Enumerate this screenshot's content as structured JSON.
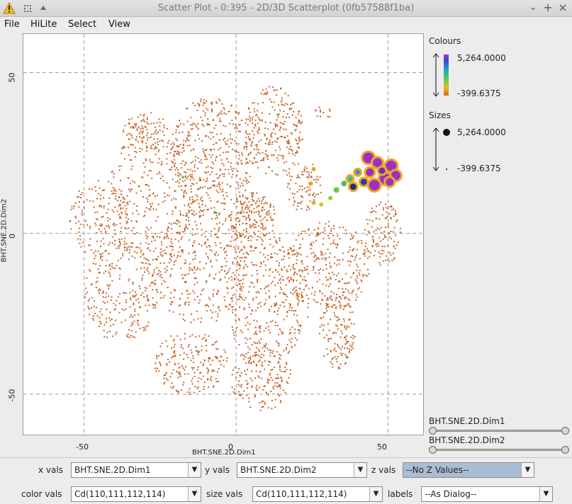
{
  "window": {
    "title": "Scatter Plot - 0:395 - 2D/3D Scatterplot (0fb57588f1ba)",
    "warning_icon": "warning-triangle-icon",
    "buttons": [
      "pin-icon",
      "collapse-icon",
      "minimize-icon",
      "maximize-icon",
      "close-icon"
    ],
    "minimize_glyph": "⌄",
    "maximize_glyph": "+",
    "close_glyph": "×"
  },
  "menu": {
    "file": "File",
    "hilite": "HiLite",
    "select": "Select",
    "view": "View"
  },
  "chart_data": {
    "type": "scatter",
    "xlabel": "BHT.SNE.2D.Dim1",
    "ylabel": "BHT.SNE.2D.Dim2",
    "xlim": [
      -70,
      62
    ],
    "ylim": [
      -63,
      62
    ],
    "x_ticks": [
      "-50",
      "0",
      "50"
    ],
    "y_ticks": [
      "50",
      "0",
      "-50"
    ],
    "grid": true,
    "point_color_default": "#c8652a",
    "highlight_points": [
      {
        "x": 43.5,
        "y": 23.5,
        "size": 9,
        "color": "#9b30c8"
      },
      {
        "x": 46.5,
        "y": 22.0,
        "size": 8,
        "color": "#9b30c8"
      },
      {
        "x": 51.0,
        "y": 21.0,
        "size": 9,
        "color": "#9b30c8"
      },
      {
        "x": 52.5,
        "y": 18.0,
        "size": 8,
        "color": "#9b30c8"
      },
      {
        "x": 49.0,
        "y": 17.0,
        "size": 9,
        "color": "#9b30c8"
      },
      {
        "x": 45.5,
        "y": 15.0,
        "size": 9,
        "color": "#9b30c8"
      },
      {
        "x": 44.0,
        "y": 19.0,
        "size": 7,
        "color": "#9b30c8"
      },
      {
        "x": 48.0,
        "y": 19.5,
        "size": 6,
        "color": "#6a2eb8"
      },
      {
        "x": 50.5,
        "y": 16.0,
        "size": 7,
        "color": "#9b30c8"
      },
      {
        "x": 42.0,
        "y": 16.0,
        "size": 6,
        "color": "#2a3fa8"
      },
      {
        "x": 38.5,
        "y": 14.5,
        "size": 6,
        "color": "#1b2e8c"
      },
      {
        "x": 40.0,
        "y": 19.0,
        "size": 5,
        "color": "#2a9cc8"
      },
      {
        "x": 37.5,
        "y": 17.0,
        "size": 5,
        "color": "#3ab89a"
      },
      {
        "x": 35.5,
        "y": 15.5,
        "size": 4,
        "color": "#4ac060"
      },
      {
        "x": 33.0,
        "y": 13.5,
        "size": 4,
        "color": "#6bc84a"
      },
      {
        "x": 31.0,
        "y": 11.0,
        "size": 3,
        "color": "#9ec83a"
      },
      {
        "x": 28.0,
        "y": 9.0,
        "size": 3,
        "color": "#d8c030"
      },
      {
        "x": 25.5,
        "y": 9.5,
        "size": 3,
        "color": "#e0b020"
      },
      {
        "x": 24.5,
        "y": 15.5,
        "size": 3,
        "color": "#e0a820"
      },
      {
        "x": 25.5,
        "y": 20.0,
        "size": 3,
        "color": "#e0a820"
      },
      {
        "x": -7.0,
        "y": 6.5,
        "size": 2,
        "color": "#3fc040"
      },
      {
        "x": 36.5,
        "y": -38.5,
        "size": 2,
        "color": "#3fc040"
      },
      {
        "x": -17.5,
        "y": 17.5,
        "size": 2,
        "color": "#6ac850"
      }
    ]
  },
  "legend": {
    "colours_title": "Colours",
    "colours_max": "5,264.0000",
    "colours_min": "-399.6375",
    "sizes_title": "Sizes",
    "sizes_max": "5,264.0000",
    "sizes_min": "-399.6375",
    "gradient": [
      "#9b30c8",
      "#3050d0",
      "#20a0d0",
      "#30c080",
      "#80c840",
      "#e0c020",
      "#e89020",
      "#c8652a"
    ]
  },
  "sliders": [
    {
      "label": "BHT.SNE.2D.Dim1",
      "low": 0.0,
      "high": 1.0
    },
    {
      "label": "BHT.SNE.2D.Dim2",
      "low": 0.0,
      "high": 1.0
    }
  ],
  "controls": {
    "x_vals_label": "x vals",
    "x_vals_value": "BHT.SNE.2D.Dim1",
    "y_vals_label": "y vals",
    "y_vals_value": "BHT.SNE.2D.Dim2",
    "z_vals_label": "z vals",
    "z_vals_value": "--No Z Values--",
    "color_vals_label": "color vals",
    "color_vals_value": "Cd(110,111,112,114)",
    "size_vals_label": "size vals",
    "size_vals_value": "Cd(110,111,112,114)",
    "labels_label": "labels",
    "labels_value": "--As Dialog--",
    "dropdown_glyph": "▼"
  }
}
